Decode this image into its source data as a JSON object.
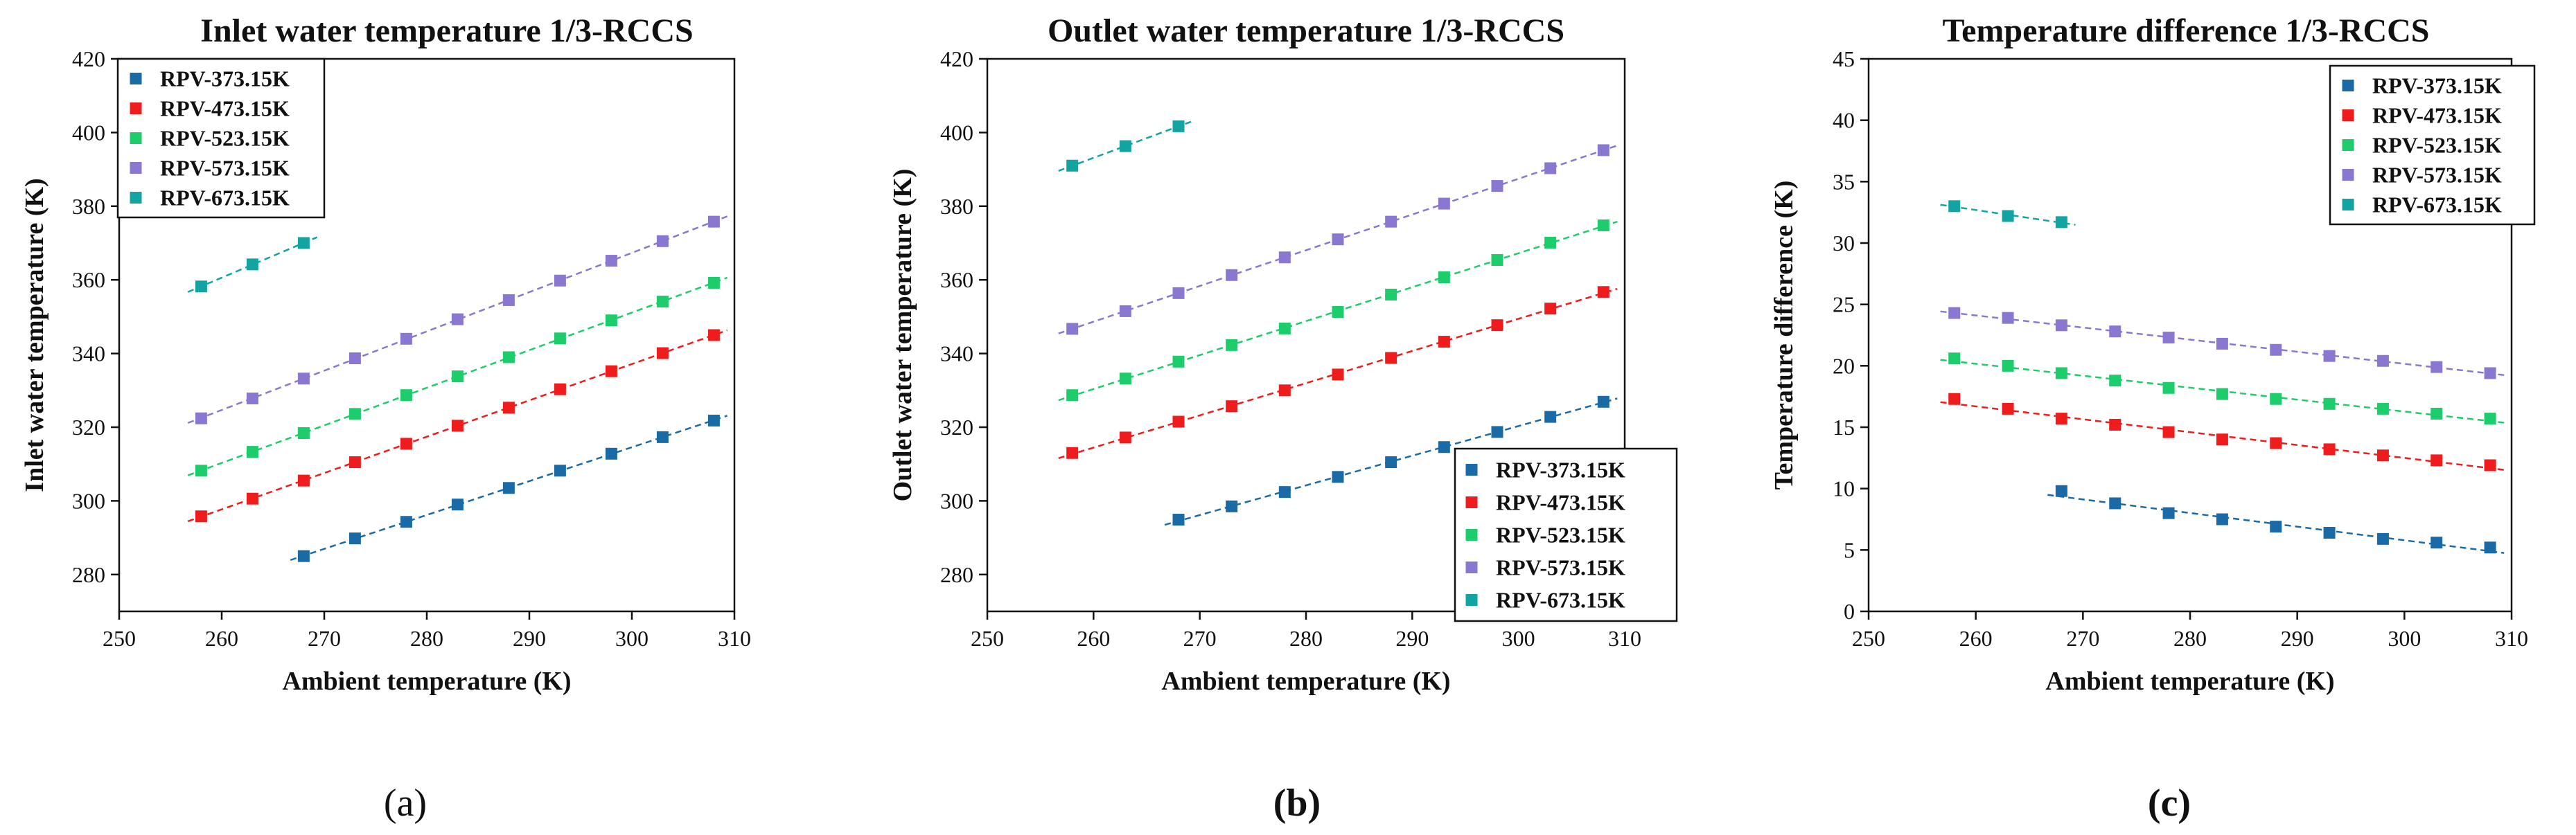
{
  "figure": {
    "panels": [
      "(a)",
      "(b)",
      "(c)"
    ]
  },
  "colors": {
    "RPV-373.15K": "#1a6aa6",
    "RPV-473.15K": "#ee1c1c",
    "RPV-523.15K": "#1dcc6a",
    "RPV-573.15K": "#8a78d0",
    "RPV-673.15K": "#12a3a3"
  },
  "chart_data": [
    {
      "type": "scatter",
      "title": "Inlet water temperature 1/3-RCCS",
      "xlabel": "Ambient temperature (K)",
      "ylabel": "Inlet water temperature (K)",
      "xlim": [
        250,
        310
      ],
      "ylim": [
        270,
        420
      ],
      "xticks": [
        250,
        260,
        270,
        280,
        290,
        300,
        310
      ],
      "yticks": [
        280,
        300,
        320,
        340,
        360,
        380,
        400,
        420
      ],
      "legend_position": "top-left",
      "series": [
        {
          "name": "RPV-373.15K",
          "x": [
            268,
            273,
            278,
            283,
            288,
            293,
            298,
            303,
            308
          ],
          "values": [
            285.0,
            289.8,
            294.3,
            299.0,
            303.5,
            308.2,
            312.8,
            317.3,
            321.8
          ]
        },
        {
          "name": "RPV-473.15K",
          "x": [
            258,
            263,
            268,
            273,
            278,
            283,
            288,
            293,
            298,
            303,
            308
          ],
          "values": [
            295.8,
            300.6,
            305.5,
            310.5,
            315.5,
            320.4,
            325.3,
            330.3,
            335.2,
            340.1,
            345.0
          ]
        },
        {
          "name": "RPV-523.15K",
          "x": [
            258,
            263,
            268,
            273,
            278,
            283,
            288,
            293,
            298,
            303,
            308
          ],
          "values": [
            308.2,
            313.3,
            318.4,
            323.6,
            328.7,
            333.8,
            339.0,
            344.1,
            349.0,
            354.1,
            359.2
          ]
        },
        {
          "name": "RPV-573.15K",
          "x": [
            258,
            263,
            268,
            273,
            278,
            283,
            288,
            293,
            298,
            303,
            308
          ],
          "values": [
            322.4,
            327.8,
            333.2,
            338.7,
            344.0,
            349.3,
            354.5,
            359.8,
            365.2,
            370.5,
            375.8
          ]
        },
        {
          "name": "RPV-673.15K",
          "x": [
            258,
            263,
            268
          ],
          "values": [
            358.2,
            364.2,
            370.0
          ]
        }
      ]
    },
    {
      "type": "scatter",
      "title": "Outlet water temperature 1/3-RCCS",
      "xlabel": "Ambient temperature (K)",
      "ylabel": "Outlet water temperature (K)",
      "xlim": [
        250,
        310
      ],
      "ylim": [
        270,
        420
      ],
      "xticks": [
        250,
        260,
        270,
        280,
        290,
        300,
        310
      ],
      "yticks": [
        280,
        300,
        320,
        340,
        360,
        380,
        400,
        420
      ],
      "legend_position": "bottom-right",
      "series": [
        {
          "name": "RPV-373.15K",
          "x": [
            268,
            273,
            278,
            283,
            288,
            293,
            298,
            303,
            308
          ],
          "values": [
            294.9,
            298.5,
            302.4,
            306.5,
            310.5,
            314.6,
            318.7,
            322.8,
            326.9
          ]
        },
        {
          "name": "RPV-473.15K",
          "x": [
            258,
            263,
            268,
            273,
            278,
            283,
            288,
            293,
            298,
            303,
            308
          ],
          "values": [
            313.0,
            317.2,
            321.5,
            325.7,
            330.0,
            334.3,
            338.8,
            343.2,
            347.7,
            352.2,
            356.7
          ]
        },
        {
          "name": "RPV-523.15K",
          "x": [
            258,
            263,
            268,
            273,
            278,
            283,
            288,
            293,
            298,
            303,
            308
          ],
          "values": [
            328.7,
            333.2,
            337.8,
            342.3,
            346.8,
            351.3,
            356.0,
            360.7,
            365.4,
            370.1,
            374.8
          ]
        },
        {
          "name": "RPV-573.15K",
          "x": [
            258,
            263,
            268,
            273,
            278,
            283,
            288,
            293,
            298,
            303,
            308
          ],
          "values": [
            346.7,
            351.5,
            356.4,
            361.3,
            366.1,
            371.0,
            375.8,
            380.7,
            385.5,
            390.3,
            395.2
          ]
        },
        {
          "name": "RPV-673.15K",
          "x": [
            258,
            263,
            268
          ],
          "values": [
            391.0,
            396.3,
            401.7
          ]
        }
      ]
    },
    {
      "type": "scatter",
      "title": "Temperature difference 1/3-RCCS",
      "xlabel": "Ambient temperature (K)",
      "ylabel": "Temperature difference (K)",
      "xlim": [
        250,
        310
      ],
      "ylim": [
        0,
        45
      ],
      "xticks": [
        250,
        260,
        270,
        280,
        290,
        300,
        310
      ],
      "yticks": [
        0,
        5,
        10,
        15,
        20,
        25,
        30,
        35,
        40,
        45
      ],
      "legend_position": "top-right",
      "series": [
        {
          "name": "RPV-373.15K",
          "x": [
            268,
            273,
            278,
            283,
            288,
            293,
            298,
            303,
            308
          ],
          "values": [
            9.8,
            8.8,
            8.0,
            7.5,
            6.9,
            6.4,
            5.9,
            5.6,
            5.2
          ]
        },
        {
          "name": "RPV-473.15K",
          "x": [
            258,
            263,
            268,
            273,
            278,
            283,
            288,
            293,
            298,
            303,
            308
          ],
          "values": [
            17.3,
            16.5,
            15.7,
            15.2,
            14.6,
            14.0,
            13.7,
            13.2,
            12.7,
            12.3,
            11.9
          ]
        },
        {
          "name": "RPV-523.15K",
          "x": [
            258,
            263,
            268,
            273,
            278,
            283,
            288,
            293,
            298,
            303,
            308
          ],
          "values": [
            20.6,
            20.0,
            19.4,
            18.8,
            18.2,
            17.7,
            17.3,
            16.9,
            16.5,
            16.1,
            15.7
          ]
        },
        {
          "name": "RPV-573.15K",
          "x": [
            258,
            263,
            268,
            273,
            278,
            283,
            288,
            293,
            298,
            303,
            308
          ],
          "values": [
            24.3,
            23.9,
            23.3,
            22.8,
            22.3,
            21.8,
            21.3,
            20.8,
            20.4,
            19.9,
            19.4
          ]
        },
        {
          "name": "RPV-673.15K",
          "x": [
            258,
            263,
            268
          ],
          "values": [
            33.0,
            32.2,
            31.7
          ]
        }
      ]
    }
  ]
}
